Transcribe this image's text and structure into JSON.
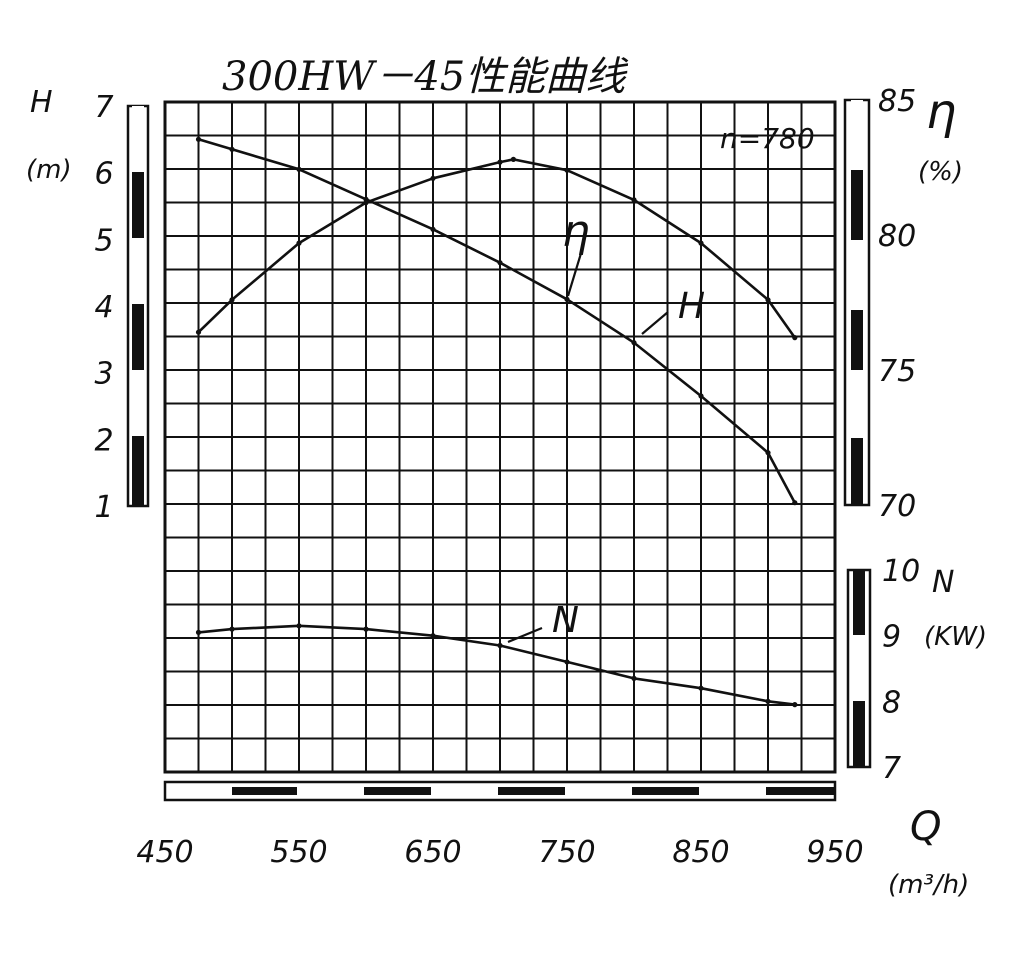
{
  "chart_data": {
    "type": "line",
    "title": "300HW－45性能曲线",
    "speed_label": "n=780",
    "x": {
      "label": "Q",
      "unit": "(m³/h)",
      "range": [
        450,
        950
      ],
      "ticks": [
        450,
        550,
        650,
        750,
        850,
        950
      ]
    },
    "axes": {
      "H": {
        "label": "H",
        "unit": "(m)",
        "range": [
          1,
          7
        ],
        "ticks": [
          1,
          2,
          3,
          4,
          5,
          6,
          7
        ]
      },
      "eta": {
        "label": "η",
        "unit": "(%)",
        "range": [
          70,
          85
        ],
        "ticks": [
          70,
          75,
          80,
          85
        ]
      },
      "N": {
        "label": "N",
        "unit": "(KW)",
        "range": [
          7,
          10
        ],
        "ticks": [
          7,
          8,
          9,
          10
        ]
      }
    },
    "grid": true,
    "series": [
      {
        "name": "H",
        "axis": "H",
        "points": [
          [
            475,
            6.5
          ],
          [
            500,
            6.35
          ],
          [
            550,
            6.05
          ],
          [
            600,
            5.6
          ],
          [
            650,
            5.15
          ],
          [
            700,
            4.65
          ],
          [
            750,
            4.1
          ],
          [
            800,
            3.45
          ],
          [
            850,
            2.65
          ],
          [
            900,
            1.8
          ],
          [
            920,
            1.05
          ]
        ]
      },
      {
        "name": "η",
        "axis": "eta",
        "points": [
          [
            475,
            76.4
          ],
          [
            500,
            77.6
          ],
          [
            550,
            79.7
          ],
          [
            600,
            81.2
          ],
          [
            650,
            82.1
          ],
          [
            700,
            82.7
          ],
          [
            710,
            82.8
          ],
          [
            750,
            82.4
          ],
          [
            800,
            81.3
          ],
          [
            850,
            79.7
          ],
          [
            900,
            77.6
          ],
          [
            920,
            76.2
          ]
        ]
      },
      {
        "name": "N",
        "axis": "N",
        "points": [
          [
            475,
            9.05
          ],
          [
            500,
            9.1
          ],
          [
            550,
            9.15
          ],
          [
            600,
            9.1
          ],
          [
            650,
            9.0
          ],
          [
            700,
            8.85
          ],
          [
            750,
            8.6
          ],
          [
            800,
            8.35
          ],
          [
            850,
            8.2
          ],
          [
            900,
            8.0
          ],
          [
            920,
            7.95
          ]
        ]
      }
    ]
  }
}
